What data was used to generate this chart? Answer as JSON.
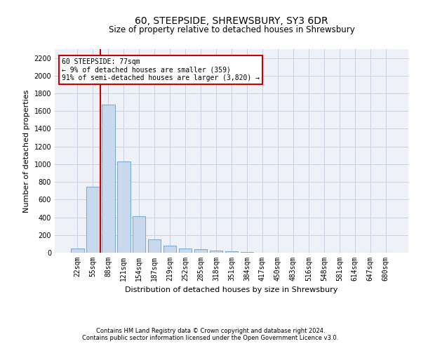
{
  "title": "60, STEEPSIDE, SHREWSBURY, SY3 6DR",
  "subtitle": "Size of property relative to detached houses in Shrewsbury",
  "xlabel": "Distribution of detached houses by size in Shrewsbury",
  "ylabel": "Number of detached properties",
  "footer1": "Contains HM Land Registry data © Crown copyright and database right 2024.",
  "footer2": "Contains public sector information licensed under the Open Government Licence v3.0.",
  "annotation_title": "60 STEEPSIDE: 77sqm",
  "annotation_line1": "← 9% of detached houses are smaller (359)",
  "annotation_line2": "91% of semi-detached houses are larger (3,820) →",
  "bin_labels": [
    "22sqm",
    "55sqm",
    "88sqm",
    "121sqm",
    "154sqm",
    "187sqm",
    "219sqm",
    "252sqm",
    "285sqm",
    "318sqm",
    "351sqm",
    "384sqm",
    "417sqm",
    "450sqm",
    "483sqm",
    "516sqm",
    "548sqm",
    "581sqm",
    "614sqm",
    "647sqm",
    "680sqm"
  ],
  "bar_values": [
    50,
    745,
    1670,
    1030,
    410,
    150,
    80,
    45,
    40,
    25,
    15,
    5,
    0,
    0,
    0,
    0,
    0,
    0,
    0,
    0,
    0
  ],
  "bar_color": "#c9d9ed",
  "bar_edge_color": "#7aacd4",
  "vline_color": "#cc0000",
  "annotation_box_color": "#cc0000",
  "ylim": [
    0,
    2300
  ],
  "yticks": [
    0,
    200,
    400,
    600,
    800,
    1000,
    1200,
    1400,
    1600,
    1800,
    2000,
    2200
  ],
  "grid_color": "#c8d0e0",
  "plot_bg_color": "#eef2f8",
  "title_fontsize": 10,
  "subtitle_fontsize": 8.5,
  "ylabel_fontsize": 8,
  "xlabel_fontsize": 8,
  "tick_fontsize": 7,
  "footer_fontsize": 6
}
